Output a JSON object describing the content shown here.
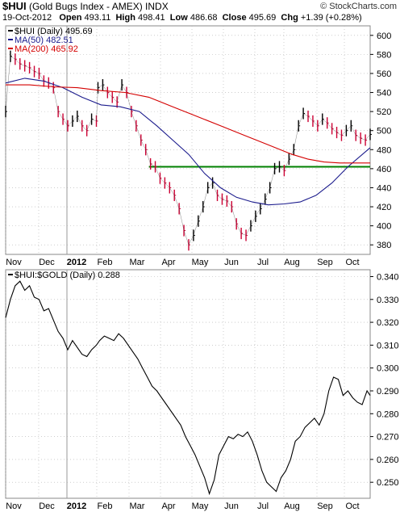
{
  "header": {
    "symbol": "$HUI",
    "name": "(Gold Bugs Index - AMEX) INDX",
    "date": "19-Oct-2012",
    "open_label": "Open",
    "open": "493.11",
    "high_label": "High",
    "high": "498.41",
    "low_label": "Low",
    "low": "486.68",
    "close_label": "Close",
    "close": "495.69",
    "chg_label": "Chg",
    "chg": "+1.39 (+0.28%)",
    "brand": "© StockCharts.com"
  },
  "colors": {
    "price_up": "#000000",
    "price_down": "#cc0033",
    "ma50": "#1a1a8c",
    "ma200": "#d40000",
    "hline": "#008000",
    "grid": "#b0b0b0",
    "ratio": "#000000"
  },
  "chart_data": [
    {
      "type": "line",
      "title": "$HUI (Daily) 495.69",
      "legend": [
        "$HUI (Daily) 495.69",
        "MA(50) 482.51",
        "MA(200) 465.92"
      ],
      "legend_placement": "top-left",
      "x_tick_labels": [
        "Nov",
        "Dec",
        "2012",
        "Feb",
        "Mar",
        "Apr",
        "May",
        "Jun",
        "Jul",
        "Aug",
        "Sep",
        "Oct"
      ],
      "y_tick_labels": [
        "380",
        "400",
        "420",
        "440",
        "460",
        "480",
        "500",
        "520",
        "540",
        "560",
        "580",
        "600"
      ],
      "ylim": [
        370,
        610
      ],
      "grid": true,
      "horizontal_line": 462,
      "series": [
        {
          "name": "$HUI (Daily) 495.69",
          "x": [
            0,
            6,
            12,
            18,
            24,
            30,
            36,
            42,
            48,
            54,
            60,
            66,
            72,
            78,
            84,
            90,
            96,
            102,
            108,
            114,
            116,
            122,
            128,
            134,
            140,
            146,
            152,
            158,
            164,
            170,
            176,
            182,
            188,
            194,
            200,
            206,
            212,
            218,
            224,
            230,
            236,
            242,
            248,
            254,
            260,
            266,
            272,
            278,
            284,
            290,
            296,
            302,
            308,
            314,
            320,
            326,
            332,
            338,
            344,
            350,
            356,
            362,
            368,
            374,
            380,
            386,
            392,
            398,
            404,
            410,
            416,
            422,
            428,
            434,
            440,
            446,
            452,
            458
          ],
          "y": [
            520,
            578,
            575,
            570,
            568,
            566,
            562,
            560,
            552,
            550,
            545,
            520,
            512,
            505,
            510,
            515,
            505,
            500,
            512,
            510,
            545,
            548,
            540,
            535,
            530,
            548,
            540,
            520,
            505,
            490,
            480,
            465,
            462,
            450,
            445,
            440,
            432,
            418,
            395,
            380,
            390,
            405,
            420,
            440,
            445,
            432,
            428,
            426,
            420,
            402,
            392,
            390,
            400,
            410,
            418,
            428,
            440,
            460,
            462,
            458,
            470,
            480,
            505,
            518,
            515,
            510,
            505,
            512,
            508,
            502,
            498,
            495,
            500,
            505,
            495,
            492,
            490,
            496
          ]
        },
        {
          "name": "MA(50) 482.51",
          "x": [
            0,
            24,
            48,
            72,
            96,
            120,
            144,
            168,
            190,
            210,
            230,
            250,
            270,
            290,
            310,
            330,
            350,
            370,
            390,
            410,
            430,
            458
          ],
          "y": [
            550,
            555,
            552,
            545,
            535,
            527,
            525,
            520,
            505,
            490,
            475,
            455,
            440,
            430,
            425,
            422,
            423,
            425,
            432,
            445,
            462,
            482
          ]
        },
        {
          "name": "MA(200) 465.92",
          "x": [
            0,
            30,
            60,
            90,
            120,
            150,
            180,
            210,
            240,
            270,
            300,
            330,
            360,
            380,
            400,
            420,
            440,
            458
          ],
          "y": [
            548,
            548,
            546,
            545,
            542,
            540,
            535,
            525,
            515,
            505,
            495,
            485,
            475,
            470,
            467,
            466,
            466,
            466
          ]
        }
      ]
    },
    {
      "type": "line",
      "title": "$HUI:$GOLD (Daily) 0.288",
      "legend": [
        "$HUI:$GOLD (Daily) 0.288"
      ],
      "legend_placement": "top-left",
      "x_tick_labels": [
        "Nov",
        "Dec",
        "2012",
        "Feb",
        "Mar",
        "Apr",
        "May",
        "Jun",
        "Jul",
        "Aug",
        "Sep",
        "Oct"
      ],
      "y_tick_labels": [
        "0.250",
        "0.260",
        "0.270",
        "0.280",
        "0.290",
        "0.300",
        "0.310",
        "0.320",
        "0.330",
        "0.340"
      ],
      "ylim": [
        0.243,
        0.343
      ],
      "grid": true,
      "series": [
        {
          "name": "$HUI:$GOLD (Daily) 0.288",
          "x": [
            0,
            6,
            12,
            18,
            24,
            30,
            36,
            42,
            48,
            54,
            60,
            66,
            72,
            78,
            84,
            90,
            96,
            102,
            108,
            114,
            118,
            124,
            130,
            136,
            142,
            148,
            154,
            160,
            166,
            172,
            178,
            184,
            190,
            196,
            202,
            208,
            214,
            220,
            226,
            232,
            238,
            244,
            250,
            256,
            262,
            268,
            274,
            280,
            286,
            292,
            298,
            304,
            310,
            316,
            322,
            328,
            334,
            340,
            346,
            352,
            358,
            364,
            370,
            376,
            382,
            388,
            394,
            400,
            406,
            412,
            418,
            424,
            430,
            436,
            442,
            448,
            454,
            458
          ],
          "y": [
            0.322,
            0.33,
            0.336,
            0.338,
            0.334,
            0.336,
            0.331,
            0.33,
            0.325,
            0.326,
            0.321,
            0.316,
            0.313,
            0.308,
            0.312,
            0.309,
            0.306,
            0.305,
            0.308,
            0.31,
            0.312,
            0.314,
            0.313,
            0.312,
            0.315,
            0.313,
            0.31,
            0.307,
            0.304,
            0.3,
            0.296,
            0.292,
            0.29,
            0.287,
            0.284,
            0.281,
            0.278,
            0.275,
            0.27,
            0.266,
            0.262,
            0.257,
            0.252,
            0.245,
            0.251,
            0.262,
            0.266,
            0.27,
            0.269,
            0.271,
            0.27,
            0.272,
            0.268,
            0.262,
            0.255,
            0.25,
            0.248,
            0.246,
            0.252,
            0.255,
            0.26,
            0.268,
            0.27,
            0.274,
            0.276,
            0.278,
            0.275,
            0.28,
            0.29,
            0.296,
            0.295,
            0.288,
            0.29,
            0.287,
            0.285,
            0.284,
            0.29,
            0.288
          ]
        }
      ]
    }
  ]
}
